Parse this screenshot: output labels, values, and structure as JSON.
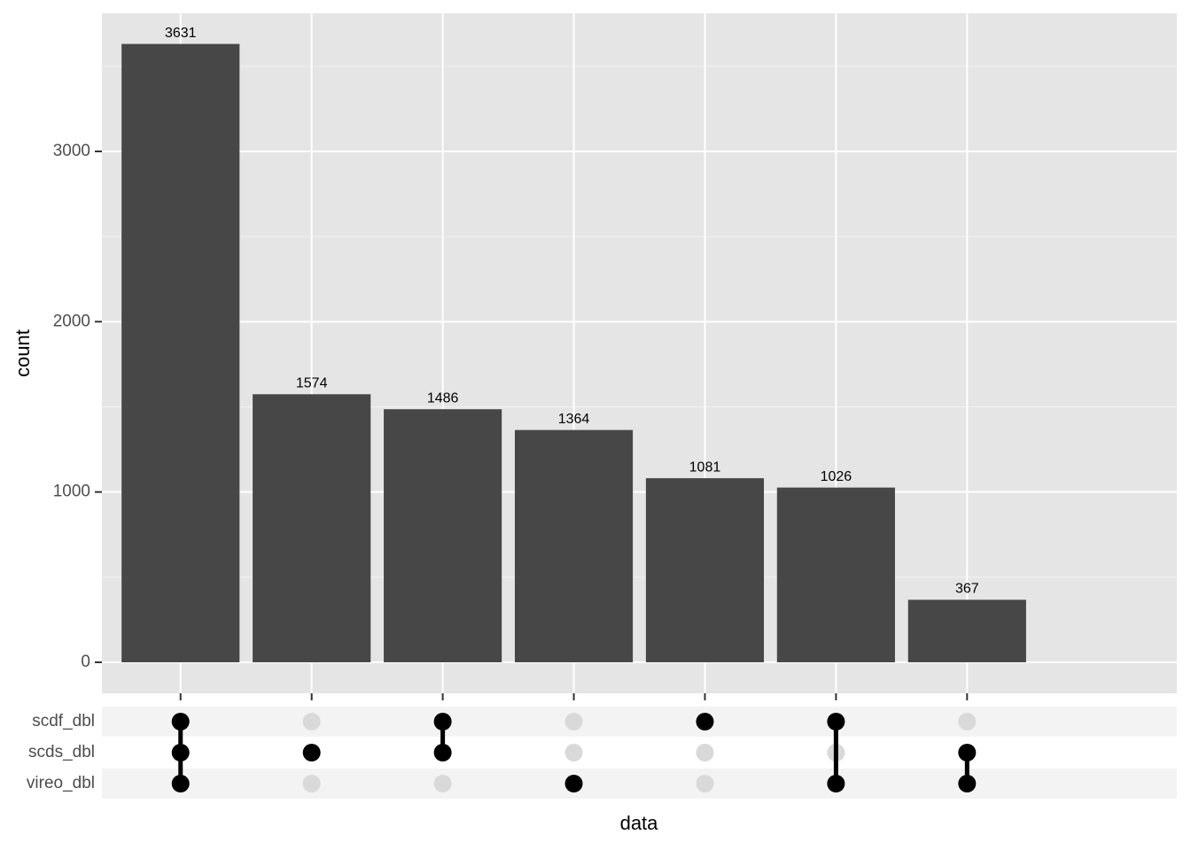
{
  "chart_data": {
    "type": "upset",
    "y_label": "count",
    "x_label": "data",
    "sets": [
      "scdf_dbl",
      "scds_dbl",
      "vireo_dbl"
    ],
    "membership": [
      [
        1,
        0,
        1,
        0,
        1,
        1,
        0
      ],
      [
        1,
        1,
        1,
        0,
        0,
        0,
        1
      ],
      [
        1,
        0,
        0,
        1,
        0,
        1,
        1
      ]
    ],
    "categories": [
      null,
      null,
      null,
      null,
      null,
      null,
      null
    ],
    "values": [
      3631,
      1574,
      1486,
      1364,
      1081,
      1026,
      367
    ],
    "color": "#474747",
    "ylim": [
      -182,
      3811
    ],
    "yticks": [
      0,
      1000,
      2000,
      3000
    ],
    "grid": true
  }
}
